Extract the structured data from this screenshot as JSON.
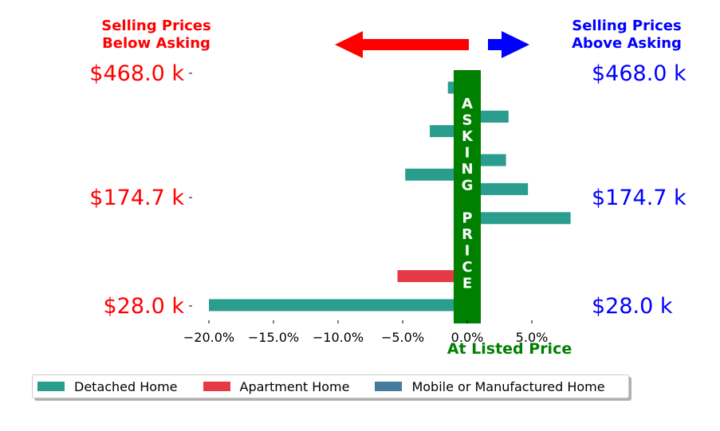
{
  "chart_data": {
    "type": "bar",
    "orientation": "horizontal",
    "header_left": [
      "Selling Prices",
      "Below Asking"
    ],
    "header_right": [
      "Selling Prices",
      "Above Asking"
    ],
    "center_label": "At Listed Price",
    "asking_price_label": [
      "A",
      "S",
      "K",
      "I",
      "N",
      "G",
      "",
      "P",
      "R",
      "I",
      "C",
      "E"
    ],
    "price_labels": [
      "$468.0 k",
      "$174.7 k",
      "$28.0 k"
    ],
    "price_label_rows": [
      0,
      8,
      15
    ],
    "x_ticks": [
      -20,
      -15,
      -10,
      -5,
      0,
      5
    ],
    "x_tick_labels": [
      "−20.0%",
      "−15.0%",
      "−10.0%",
      "−5.0%",
      "0.0%",
      "5.0%"
    ],
    "xlim": [
      -21,
      9
    ],
    "row_count": 16,
    "series": [
      {
        "name": "Detached Home",
        "color": "#2a9d8f",
        "bars": [
          {
            "row": 0,
            "value": -1.5
          },
          {
            "row": 1,
            "value": 0.6
          },
          {
            "row": 2,
            "value": 3.2
          },
          {
            "row": 3,
            "value": -2.9
          },
          {
            "row": 4,
            "value": 0.6
          },
          {
            "row": 5,
            "value": 3.0
          },
          {
            "row": 6,
            "value": -4.8
          },
          {
            "row": 7,
            "value": 4.7
          },
          {
            "row": 8,
            "value": 0.5
          },
          {
            "row": 9,
            "value": 8.0
          },
          {
            "row": 10,
            "value": 0.5
          },
          {
            "row": 11,
            "value": 0.6
          },
          {
            "row": 12,
            "value": 0.4
          },
          {
            "row": 14,
            "value": 0.6
          },
          {
            "row": 15,
            "value": -20.0
          }
        ]
      },
      {
        "name": "Apartment Home",
        "color": "#e63946",
        "bars": [
          {
            "row": 13,
            "value": -5.4
          }
        ]
      },
      {
        "name": "Mobile or Manufactured Home",
        "color": "#457b9d",
        "bars": []
      }
    ],
    "colors": {
      "left_text": "#ff0000",
      "right_text": "#0000ff",
      "asking_band": "#008000",
      "left_arrow": "#ff0000",
      "right_arrow": "#0000ff"
    },
    "legend": "bottom-center"
  }
}
